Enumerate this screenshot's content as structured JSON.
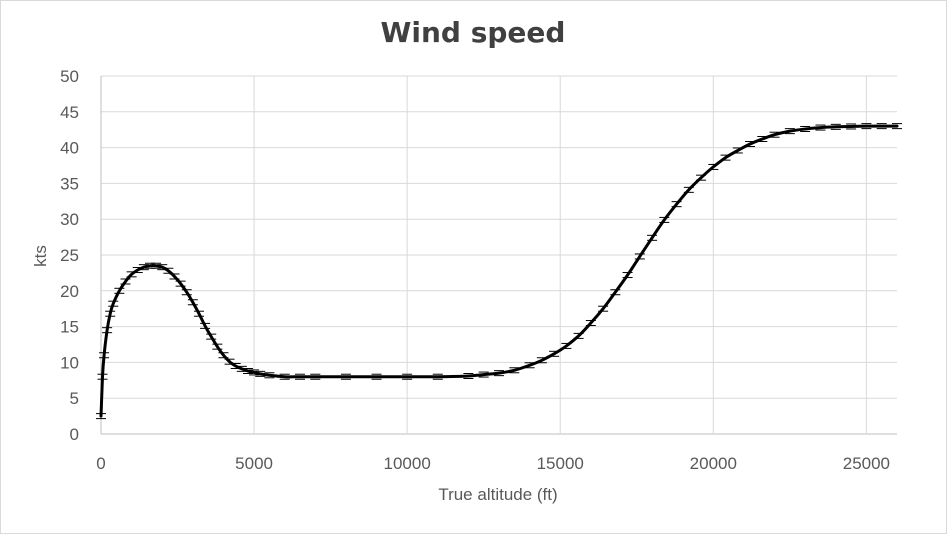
{
  "chart_data": {
    "type": "line",
    "title": "Wind speed",
    "xlabel": "True altitude (ft)",
    "ylabel": "kts",
    "xlim": [
      0,
      26000
    ],
    "ylim": [
      0,
      50
    ],
    "x_ticks": [
      0,
      5000,
      10000,
      15000,
      20000,
      25000
    ],
    "y_ticks": [
      0,
      5,
      10,
      15,
      20,
      25,
      30,
      35,
      40,
      45,
      50
    ],
    "grid": true,
    "legend": "none",
    "series": [
      {
        "color": "#000000",
        "error_bars": true,
        "x": [
          0,
          50,
          100,
          200,
          300,
          400,
          600,
          800,
          1000,
          1200,
          1400,
          1600,
          1800,
          2000,
          2200,
          2400,
          2600,
          2800,
          3000,
          3200,
          3400,
          3600,
          3800,
          4000,
          4200,
          4400,
          4600,
          4800,
          5000,
          5200,
          5500,
          6000,
          6500,
          7000,
          8000,
          9000,
          10000,
          11000,
          12000,
          12500,
          13000,
          13500,
          14000,
          14400,
          14800,
          15200,
          15600,
          16000,
          16400,
          16800,
          17200,
          17600,
          18000,
          18400,
          18800,
          19200,
          19600,
          20000,
          20400,
          20800,
          21200,
          21600,
          22000,
          22500,
          23000,
          23500,
          24000,
          24500,
          25000,
          25500,
          26000
        ],
        "y": [
          2.5,
          8,
          11,
          14.5,
          16.8,
          18.2,
          20,
          21.3,
          22.3,
          22.9,
          23.3,
          23.5,
          23.5,
          23.3,
          22.8,
          22,
          21,
          19.8,
          18.4,
          16.8,
          15.1,
          13.6,
          12.2,
          11,
          10.1,
          9.5,
          9.1,
          8.8,
          8.6,
          8.4,
          8.2,
          8,
          8,
          8,
          8,
          8,
          8,
          8,
          8.1,
          8.3,
          8.5,
          8.9,
          9.6,
          10.3,
          11.2,
          12.3,
          13.7,
          15.5,
          17.5,
          19.8,
          22.2,
          24.8,
          27.4,
          29.9,
          32.1,
          34.1,
          35.8,
          37.3,
          38.6,
          39.6,
          40.5,
          41.2,
          41.8,
          42.3,
          42.6,
          42.8,
          42.9,
          42.95,
          43,
          43,
          43
        ]
      }
    ]
  }
}
